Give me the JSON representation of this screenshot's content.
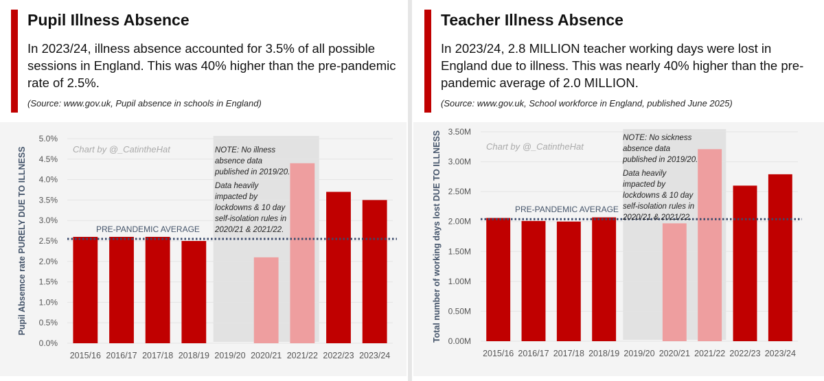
{
  "panels": [
    {
      "title": "Pupil Illness Absence",
      "description": "In 2023/24, illness absence accounted for 3.5% of all possible sessions in England. This was 40% higher than the pre-pandemic rate of 2.5%.",
      "source": "(Source: www.gov.uk, Pupil absence in schools in England)"
    },
    {
      "title": "Teacher Illness Absence",
      "description": "In 2023/24, 2.8 MILLION teacher working days were lost in England due to illness. This was nearly 40% higher than the pre-pandemic average of 2.0 MILLION.",
      "source": "(Source: www.gov.uk, School workforce in England, published June 2025)"
    }
  ],
  "colors": {
    "accent": "#c00000",
    "bar": "#c00000",
    "pandemic_bar": "#ee9e9f",
    "average_line": "#3a4a6b",
    "shade": "#e2e2e2"
  },
  "chart_data": [
    {
      "type": "bar",
      "ylabel": "Pupil Absemce rate PURELY DUE TO ILLNESS",
      "categories": [
        "2015/16",
        "2016/17",
        "2017/18",
        "2018/19",
        "2019/20",
        "2020/21",
        "2021/22",
        "2022/23",
        "2023/24"
      ],
      "values": [
        2.6,
        2.6,
        2.6,
        2.5,
        null,
        2.1,
        4.4,
        3.7,
        3.5
      ],
      "highlight": [
        false,
        false,
        false,
        false,
        false,
        true,
        true,
        false,
        false
      ],
      "ylim": [
        0,
        5
      ],
      "yticks": [
        "0.0%",
        "0.5%",
        "1.0%",
        "1.5%",
        "2.0%",
        "2.5%",
        "3.0%",
        "3.5%",
        "4.0%",
        "4.5%",
        "5.0%"
      ],
      "average": {
        "value": 2.55,
        "label": "PRE-PANDEMIC AVERAGE"
      },
      "watermark": "Chart by @_CatintheHat",
      "shaded_categories": [
        "2019/20",
        "2020/21",
        "2021/22"
      ],
      "note": [
        "NOTE: No illness",
        "absence data",
        "published in 2019/20.",
        "Data heavily",
        "impacted by",
        "lockdowns & 10 day",
        "self-isolation rules in",
        "2020/21 & 2021/22."
      ],
      "grid": true
    },
    {
      "type": "bar",
      "ylabel": "Total number of working days lost DUE TO ILLNESS",
      "categories": [
        "2015/16",
        "2016/17",
        "2017/18",
        "2018/19",
        "2019/20",
        "2020/21",
        "2021/22",
        "2022/23",
        "2023/24"
      ],
      "values": [
        2.06,
        2.01,
        2.0,
        2.07,
        null,
        1.97,
        3.21,
        2.6,
        2.79
      ],
      "highlight": [
        false,
        false,
        false,
        false,
        false,
        true,
        true,
        false,
        false
      ],
      "ylim": [
        0,
        3.5
      ],
      "yticks": [
        "0.00M",
        "0.50M",
        "1.00M",
        "1.50M",
        "2.00M",
        "2.50M",
        "3.00M",
        "3.50M"
      ],
      "average": {
        "value": 2.04,
        "label": "PRE-PANDEMIC AVERAGE"
      },
      "watermark": "Chart by @_CatintheHat",
      "shaded_categories": [
        "2019/20",
        "2020/21",
        "2021/22"
      ],
      "note": [
        "NOTE: No sickness",
        "absence data",
        "published in 2019/20.",
        "Data heavily",
        "impacted by",
        "lockdowns & 10 day",
        "self-isolation rules in",
        "2020/21 & 2021/22."
      ],
      "grid": true
    }
  ]
}
